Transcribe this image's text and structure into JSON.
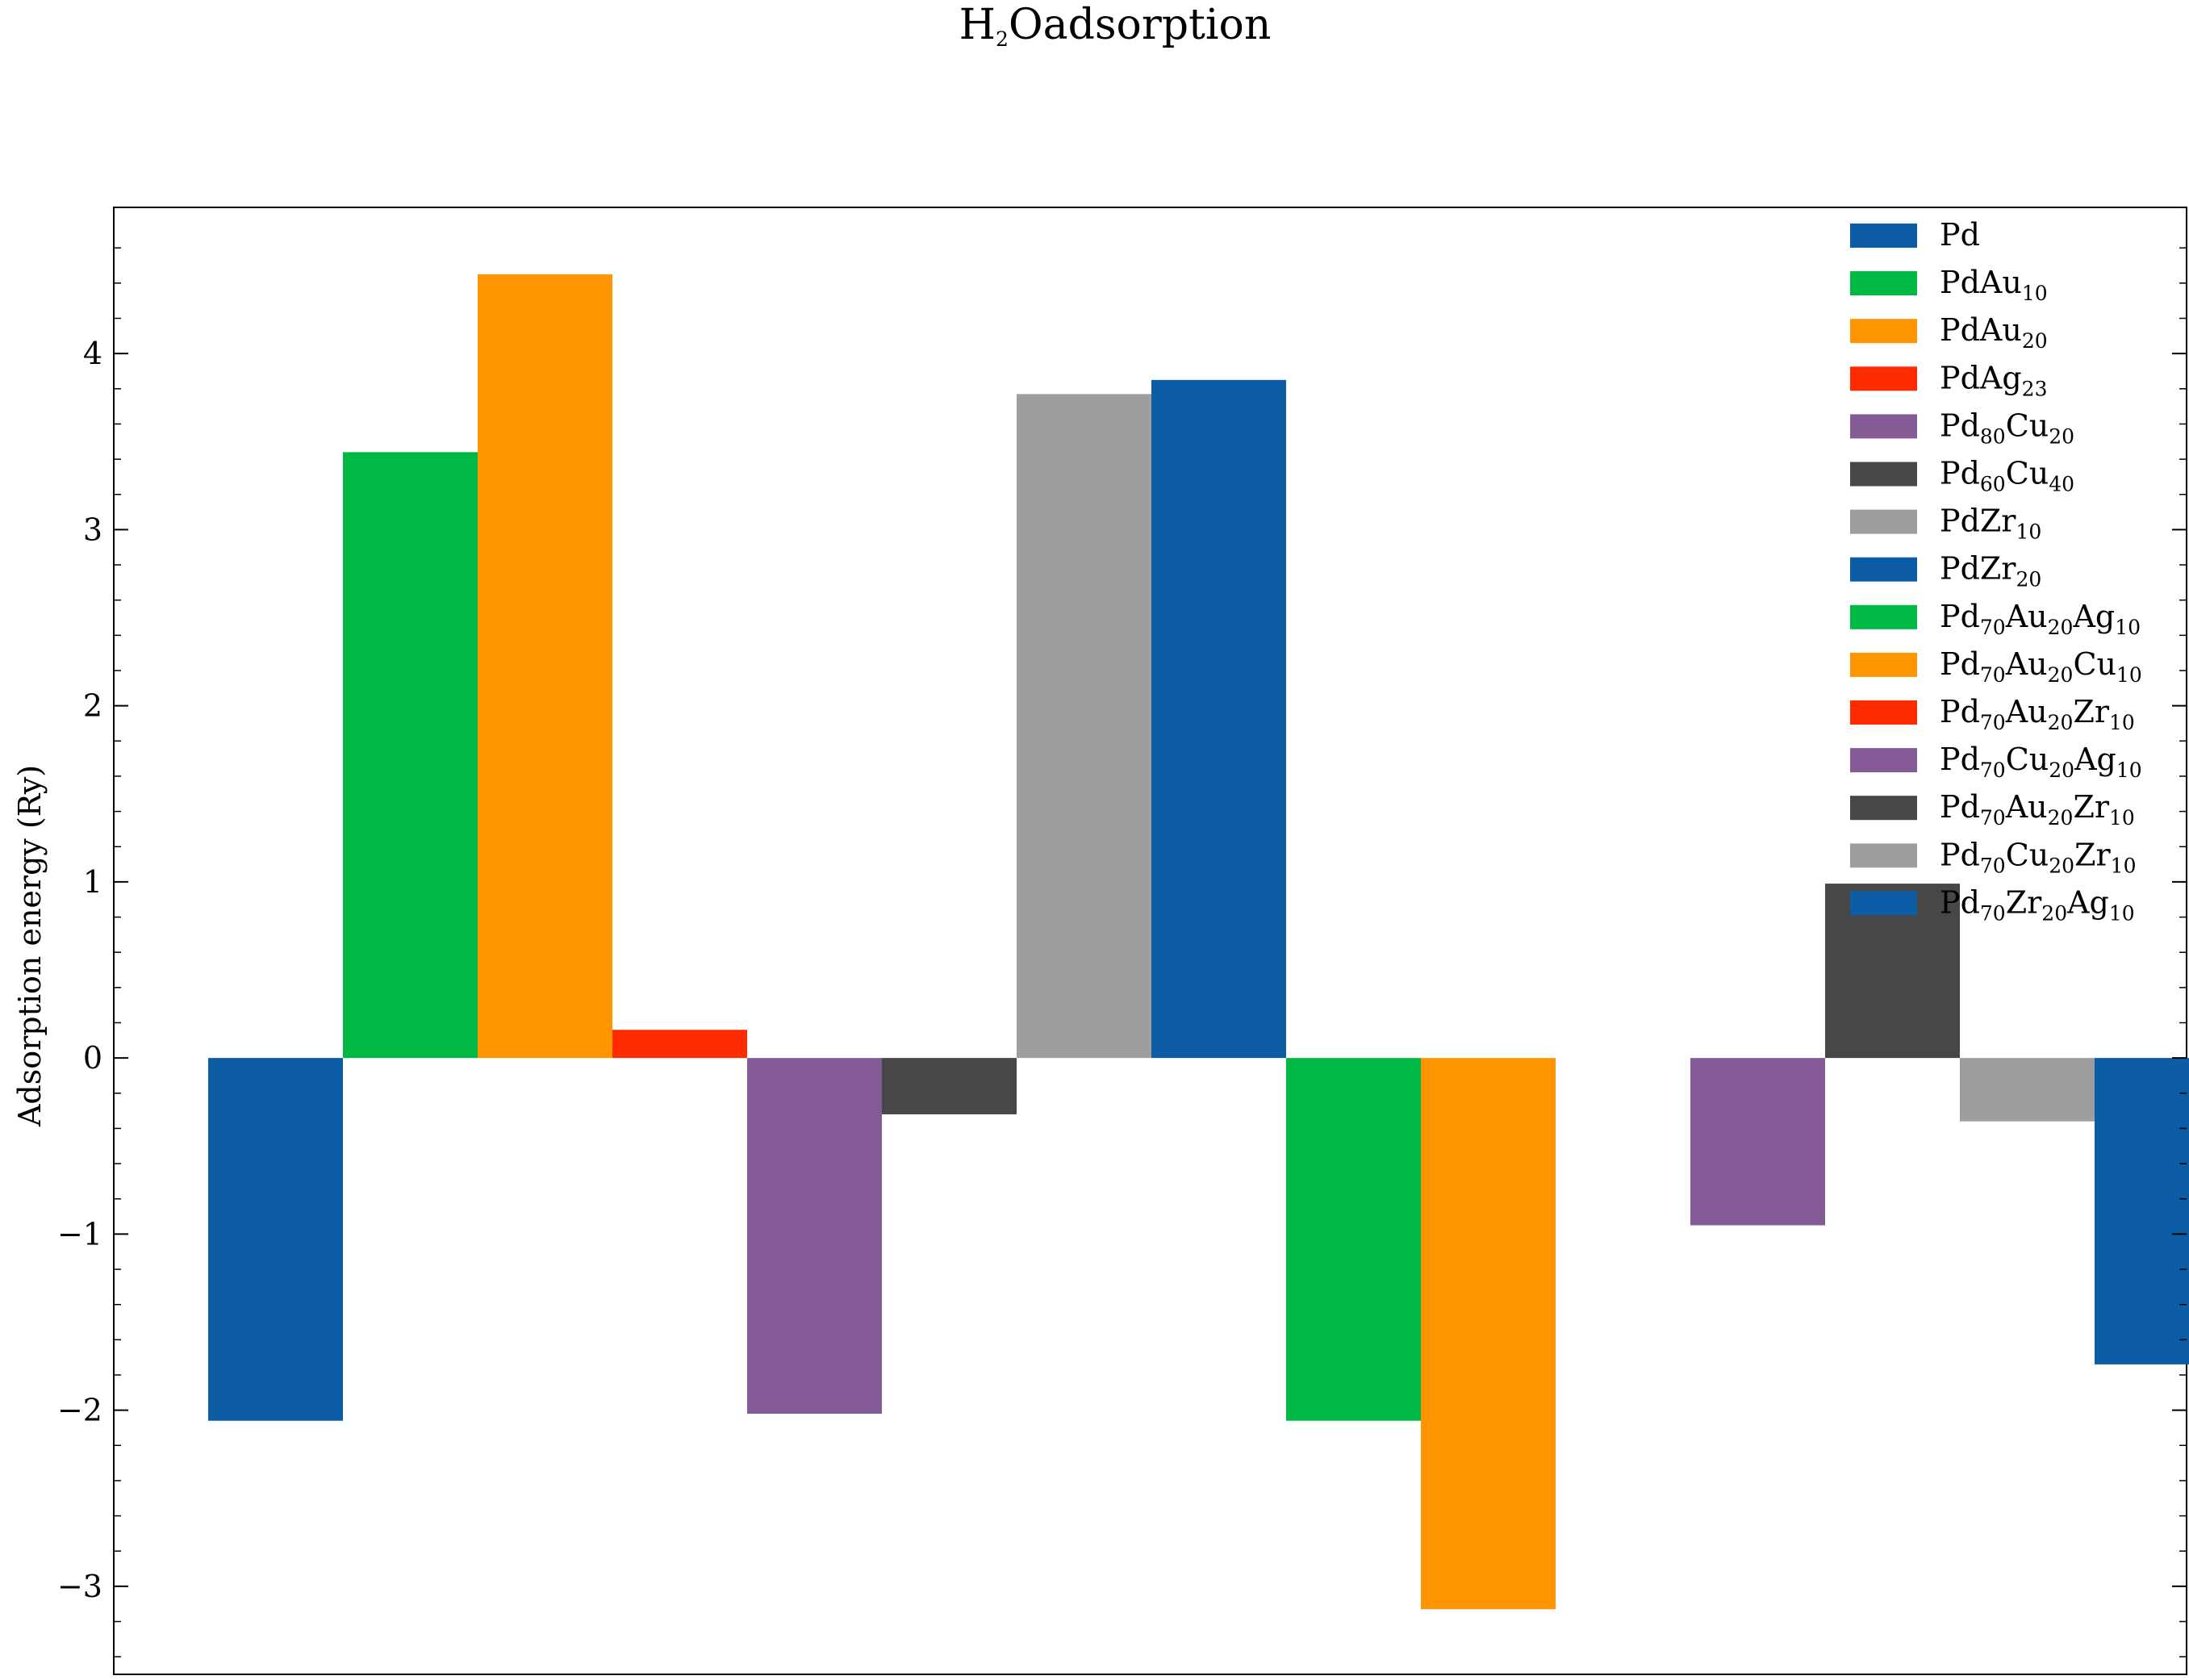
{
  "chart_data": {
    "type": "bar",
    "title": "H2O adsorption",
    "xlabel": "",
    "ylabel": "Adsorption energy (Ry)",
    "ylim": [
      -3.5,
      4.83
    ],
    "yticks": [
      -3,
      -2,
      -1,
      0,
      1,
      2,
      3,
      4
    ],
    "ytick_labels": [
      "−3",
      "−2",
      "−1",
      "0",
      "1",
      "2",
      "3",
      "4"
    ],
    "legend_position": "upper right",
    "grid": false,
    "series": [
      {
        "name": "Pd",
        "value": -2.06,
        "color": "#0C5DA5"
      },
      {
        "name": "PdAu10",
        "value": 3.44,
        "color": "#00B945"
      },
      {
        "name": "PdAu20",
        "value": 4.45,
        "color": "#FF9500"
      },
      {
        "name": "PdAg23",
        "value": 0.16,
        "color": "#FF2C00"
      },
      {
        "name": "Pd80Cu20",
        "value": -2.02,
        "color": "#845B97"
      },
      {
        "name": "Pd60Cu40",
        "value": -0.32,
        "color": "#474747"
      },
      {
        "name": "PdZr10",
        "value": 3.77,
        "color": "#9E9E9E"
      },
      {
        "name": "PdZr20",
        "value": 3.85,
        "color": "#0C5DA5"
      },
      {
        "name": "Pd70Au20Ag10",
        "value": -2.06,
        "color": "#00B945"
      },
      {
        "name": "Pd70Au20Cu10",
        "value": -3.13,
        "color": "#FF9500"
      },
      {
        "name": "Pd70Au20Zr10",
        "value": 0.0,
        "color": "#FF2C00"
      },
      {
        "name": "Pd70Cu20Ag10",
        "value": -0.95,
        "color": "#845B97"
      },
      {
        "name": "Pd70Au20Zr10",
        "value": 0.99,
        "color": "#474747"
      },
      {
        "name": "Pd70Cu20Zr10",
        "value": -0.36,
        "color": "#9E9E9E"
      },
      {
        "name": "Pd70Zr20Ag10",
        "value": -1.74,
        "color": "#0C5DA5"
      }
    ]
  }
}
